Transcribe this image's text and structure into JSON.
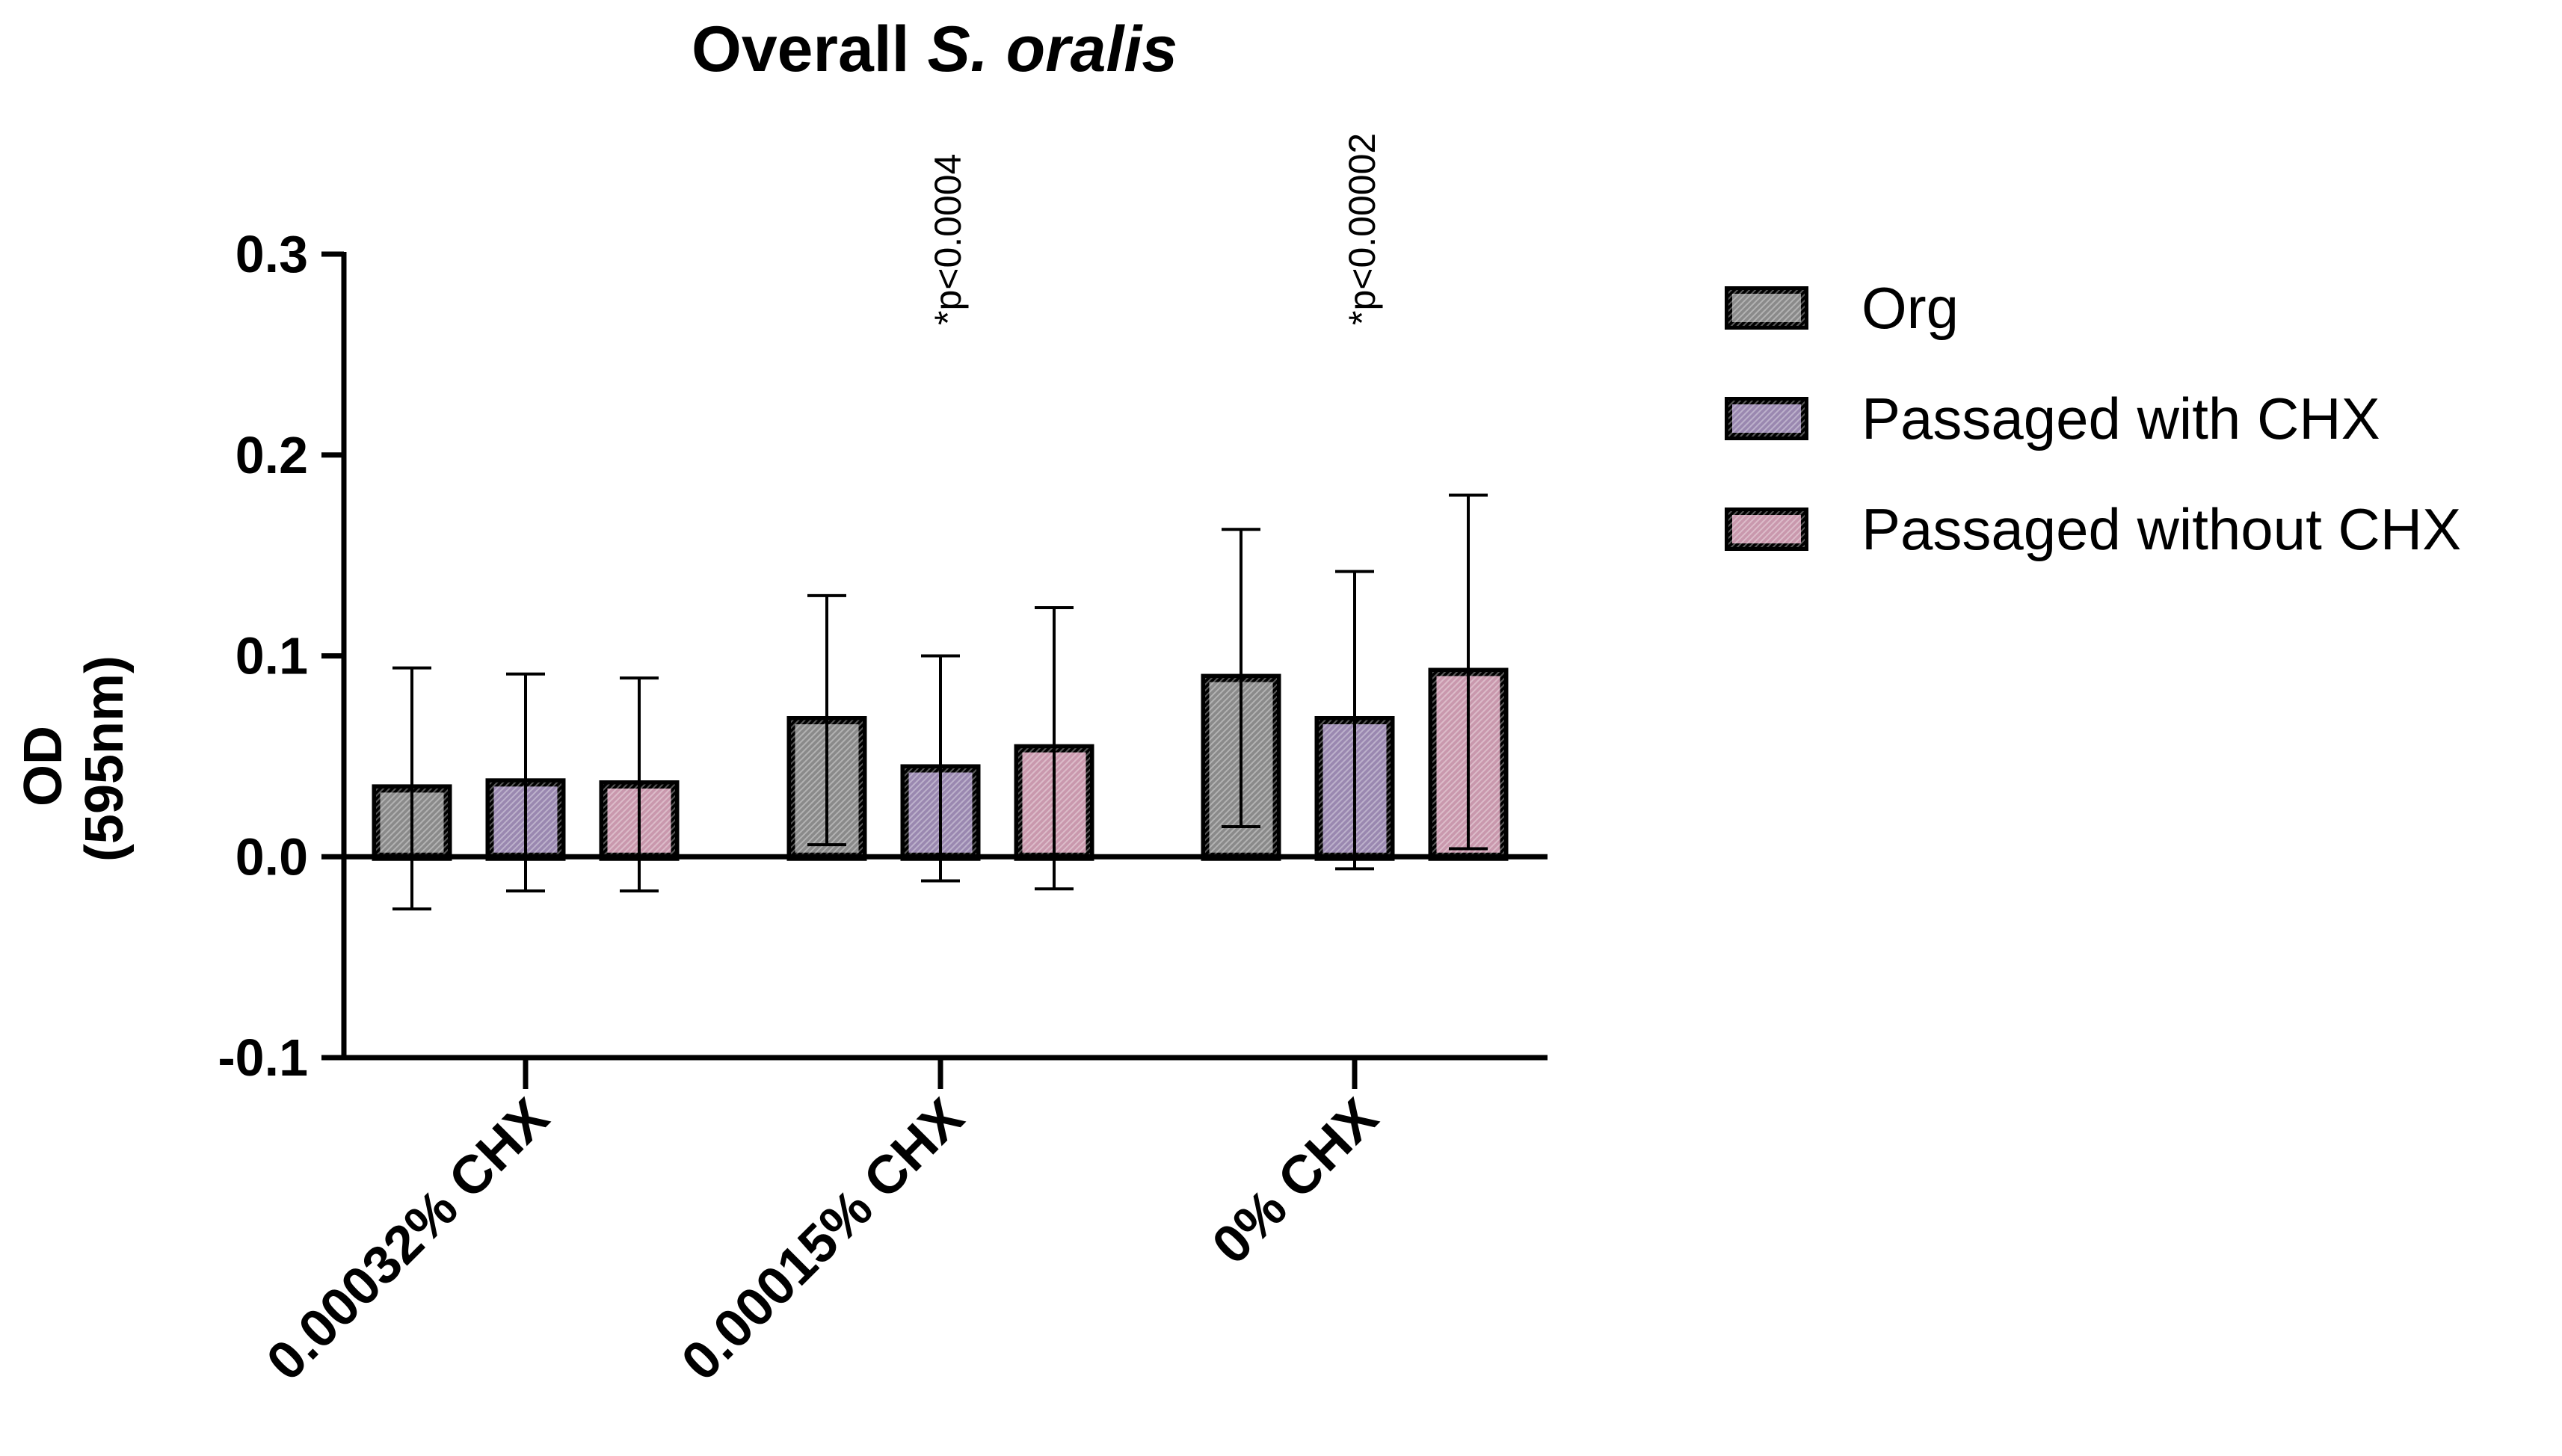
{
  "chart_data": {
    "type": "bar",
    "title_prefix": "Overall ",
    "title_italic": "S. oralis",
    "ylabel_line1": "OD",
    "ylabel_line2": "(595nm)",
    "xlabel": "",
    "ylim": [
      -0.1,
      0.3
    ],
    "yticks": [
      -0.1,
      0.0,
      0.1,
      0.2,
      0.3
    ],
    "ytick_labels": [
      "-0.1",
      "0.0",
      "0.1",
      "0.2",
      "0.3"
    ],
    "categories": [
      "0.00032% CHX",
      "0.00015% CHX",
      "0% CHX"
    ],
    "series": [
      {
        "name": "Org",
        "values": [
          0.034,
          0.068,
          0.089
        ],
        "errors": [
          0.06,
          0.062,
          0.074
        ],
        "color": "#8a8a8a"
      },
      {
        "name": "Passaged with CHX",
        "values": [
          0.037,
          0.044,
          0.068
        ],
        "errors": [
          0.054,
          0.056,
          0.074
        ],
        "color": "#9a88b0"
      },
      {
        "name": "Passaged without CHX",
        "values": [
          0.036,
          0.054,
          0.092
        ],
        "errors": [
          0.053,
          0.07,
          0.088
        ],
        "color": "#c998ad"
      }
    ],
    "annotations": [
      {
        "text": "*p<0.0004",
        "category": 1
      },
      {
        "text": "*p<0.00002",
        "category": 2
      }
    ],
    "legend_position": "right"
  }
}
